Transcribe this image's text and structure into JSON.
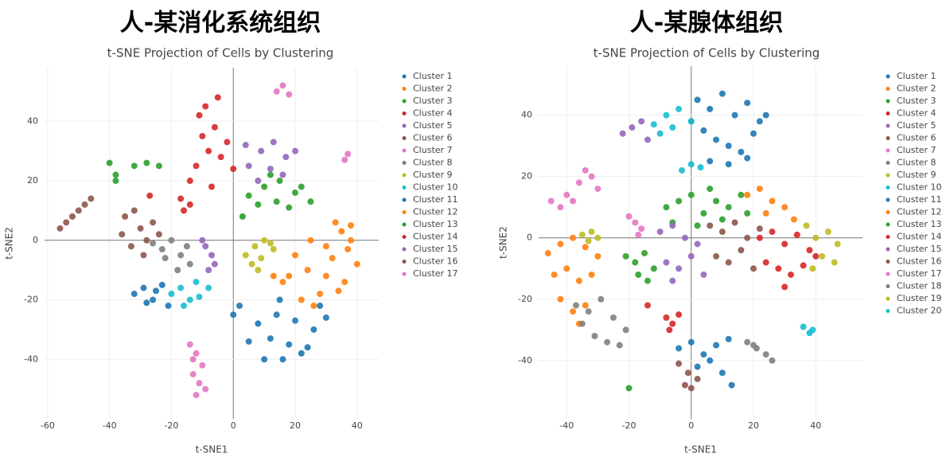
{
  "chart_data": [
    {
      "type": "scatter",
      "title": "人-某消化系统组织",
      "subtitle": "t-SNE Projection of Cells by Clustering",
      "xlabel": "t-SNE1",
      "ylabel": "t-SNE2",
      "xlim": [
        -61,
        47
      ],
      "ylim": [
        -60,
        58
      ],
      "xticks": [
        -60,
        -40,
        -20,
        0,
        20,
        40
      ],
      "yticks": [
        -40,
        -20,
        0,
        20,
        40
      ],
      "grid": true,
      "series": [
        {
          "name": "Cluster 1",
          "color": "#1f77b4",
          "x": [
            2,
            8,
            14,
            20,
            26,
            30,
            5,
            12,
            18,
            24,
            10,
            16,
            22,
            0,
            28,
            15
          ],
          "y": [
            -22,
            -28,
            -25,
            -27,
            -30,
            -26,
            -34,
            -33,
            -35,
            -36,
            -40,
            -40,
            -38,
            -25,
            -22,
            -20
          ]
        },
        {
          "name": "Cluster 2",
          "color": "#ff7f0e",
          "x": [
            20,
            25,
            30,
            35,
            38,
            40,
            18,
            24,
            30,
            36,
            22,
            28,
            34,
            26,
            32,
            37,
            38,
            33
          ],
          "y": [
            -5,
            0,
            -2,
            3,
            0,
            -8,
            -12,
            -10,
            -12,
            -14,
            -20,
            -18,
            -17,
            -22,
            -6,
            -3,
            5,
            6
          ]
        },
        {
          "name": "Cluster 3",
          "color": "#2ca02c",
          "x": [
            5,
            10,
            15,
            20,
            25,
            8,
            14,
            18,
            22,
            12,
            3
          ],
          "y": [
            15,
            18,
            20,
            16,
            13,
            12,
            13,
            11,
            18,
            22,
            8
          ]
        },
        {
          "name": "Cluster 4",
          "color": "#d62728",
          "x": [
            -12,
            -8,
            -4,
            0,
            -10,
            -6,
            -2,
            -14,
            -9,
            -5,
            -7,
            -11
          ],
          "y": [
            25,
            30,
            28,
            24,
            35,
            38,
            33,
            20,
            45,
            48,
            18,
            42
          ]
        },
        {
          "name": "Cluster 5",
          "color": "#9467bd",
          "x": [
            5,
            9,
            13,
            17,
            20,
            8,
            12,
            16,
            4
          ],
          "y": [
            25,
            30,
            33,
            28,
            30,
            20,
            24,
            22,
            32
          ]
        },
        {
          "name": "Cluster 6",
          "color": "#8c564b",
          "x": [
            -35,
            -32,
            -30,
            -28,
            -26,
            -33,
            -29,
            -24,
            -36
          ],
          "y": [
            8,
            10,
            4,
            0,
            6,
            -2,
            -5,
            2,
            2
          ]
        },
        {
          "name": "Cluster 7",
          "color": "#e377c2",
          "x": [
            -14,
            -12,
            -10,
            -13,
            -11,
            -9,
            -12,
            -13
          ],
          "y": [
            -35,
            -38,
            -42,
            -45,
            -48,
            -50,
            -52,
            -40
          ]
        },
        {
          "name": "Cluster 8",
          "color": "#7f7f7f",
          "x": [
            -26,
            -23,
            -20,
            -17,
            -14,
            -22,
            -18,
            -15
          ],
          "y": [
            -1,
            -3,
            0,
            -5,
            -8,
            -6,
            -10,
            -2
          ]
        },
        {
          "name": "Cluster 9",
          "color": "#bcbd22",
          "x": [
            4,
            7,
            10,
            13,
            6,
            9,
            12,
            8
          ],
          "y": [
            -5,
            -2,
            0,
            -3,
            -8,
            -6,
            -1,
            -10
          ]
        },
        {
          "name": "Cluster 10",
          "color": "#17becf",
          "x": [
            -20,
            -17,
            -14,
            -11,
            -8,
            -16,
            -12
          ],
          "y": [
            -18,
            -16,
            -20,
            -19,
            -16,
            -22,
            -14
          ]
        },
        {
          "name": "Cluster 11",
          "color": "#1f77b4",
          "x": [
            -32,
            -29,
            -26,
            -23,
            -21,
            -28,
            -25
          ],
          "y": [
            -18,
            -16,
            -20,
            -15,
            -22,
            -21,
            -17
          ]
        },
        {
          "name": "Cluster 12",
          "color": "#ff7f0e",
          "x": [
            13,
            16
          ],
          "y": [
            -12,
            -14
          ]
        },
        {
          "name": "Cluster 13",
          "color": "#2ca02c",
          "x": [
            -40,
            -38,
            -32,
            -28,
            -24,
            -38
          ],
          "y": [
            26,
            22,
            25,
            26,
            25,
            20
          ]
        },
        {
          "name": "Cluster 14",
          "color": "#d62728",
          "x": [
            -17,
            -14,
            -16,
            -27
          ],
          "y": [
            14,
            12,
            10,
            15
          ]
        },
        {
          "name": "Cluster 15",
          "color": "#9467bd",
          "x": [
            -9,
            -7,
            -6,
            -8,
            -10
          ],
          "y": [
            -2,
            -5,
            -8,
            -10,
            0
          ]
        },
        {
          "name": "Cluster 16",
          "color": "#8c564b",
          "x": [
            -56,
            -54,
            -52,
            -50,
            -48,
            -46
          ],
          "y": [
            4,
            6,
            8,
            10,
            12,
            14
          ]
        },
        {
          "name": "Cluster 17",
          "color": "#e377c2",
          "x": [
            14,
            16,
            18,
            36,
            37
          ],
          "y": [
            50,
            52,
            49,
            27,
            29
          ]
        }
      ]
    },
    {
      "type": "scatter",
      "title": "人-某腺体组织",
      "subtitle": "t-SNE Projection of Cells by Clustering",
      "xlabel": "t-SNE1",
      "ylabel": "t-SNE2",
      "xlim": [
        -49,
        55
      ],
      "ylim": [
        -59,
        56
      ],
      "xticks": [
        -40,
        -20,
        0,
        20,
        40
      ],
      "yticks": [
        -40,
        -20,
        0,
        20,
        40
      ],
      "grid": true,
      "series": [
        {
          "name": "Cluster 1",
          "color": "#1f77b4",
          "x": [
            2,
            6,
            10,
            14,
            18,
            22,
            4,
            8,
            12,
            16,
            20,
            24,
            6,
            12,
            18,
            0
          ],
          "y": [
            45,
            42,
            47,
            40,
            44,
            38,
            35,
            32,
            30,
            28,
            34,
            40,
            25,
            24,
            26,
            38
          ]
        },
        {
          "name": "Cluster 2",
          "color": "#ff7f0e",
          "x": [
            -46,
            -42,
            -38,
            -34,
            -30,
            -44,
            -40,
            -36,
            -32,
            -42,
            -38,
            -34,
            -36
          ],
          "y": [
            -5,
            -2,
            0,
            -3,
            -6,
            -12,
            -10,
            -14,
            -12,
            -20,
            -24,
            -22,
            -28
          ]
        },
        {
          "name": "Cluster 3",
          "color": "#2ca02c",
          "x": [
            -8,
            -4,
            0,
            4,
            8,
            12,
            16,
            -6,
            2,
            10,
            18,
            6,
            -20
          ],
          "y": [
            10,
            12,
            14,
            8,
            12,
            10,
            14,
            5,
            4,
            6,
            8,
            16,
            -49
          ]
        },
        {
          "name": "Cluster 4",
          "color": "#d62728",
          "x": [
            22,
            26,
            30,
            34,
            38,
            24,
            28,
            32,
            36,
            40,
            30
          ],
          "y": [
            0,
            2,
            -2,
            1,
            -4,
            -8,
            -10,
            -12,
            -9,
            -6,
            -16
          ]
        },
        {
          "name": "Cluster 5",
          "color": "#9467bd",
          "x": [
            -10,
            -6,
            -2,
            2,
            -8,
            -4,
            0,
            4,
            -6
          ],
          "y": [
            2,
            4,
            0,
            -2,
            -8,
            -10,
            -6,
            -12,
            -14
          ]
        },
        {
          "name": "Cluster 6",
          "color": "#8c564b",
          "x": [
            6,
            10,
            14,
            18,
            22,
            8,
            12,
            16,
            20
          ],
          "y": [
            4,
            2,
            5,
            0,
            3,
            -6,
            -8,
            -4,
            -10
          ]
        },
        {
          "name": "Cluster 7",
          "color": "#e377c2",
          "x": [
            -45,
            -40,
            -36,
            -32,
            -30,
            -42,
            -38,
            -34
          ],
          "y": [
            12,
            14,
            18,
            20,
            16,
            10,
            12,
            22
          ]
        },
        {
          "name": "Cluster 8",
          "color": "#7f7f7f",
          "x": [
            -37,
            -33,
            -29,
            -25,
            -21,
            -35,
            -31,
            -27,
            -23
          ],
          "y": [
            -22,
            -24,
            -20,
            -26,
            -30,
            -28,
            -32,
            -34,
            -35
          ]
        },
        {
          "name": "Cluster 9",
          "color": "#bcbd22",
          "x": [
            37,
            40,
            44,
            47,
            42,
            46,
            39
          ],
          "y": [
            4,
            0,
            2,
            -2,
            -6,
            -8,
            -10
          ]
        },
        {
          "name": "Cluster 10",
          "color": "#17becf",
          "x": [
            -12,
            -8,
            -4,
            0,
            -10,
            -6
          ],
          "y": [
            37,
            40,
            42,
            38,
            34,
            36
          ]
        },
        {
          "name": "Cluster 11",
          "color": "#1f77b4",
          "x": [
            -4,
            0,
            4,
            8,
            12,
            2,
            6,
            10,
            13
          ],
          "y": [
            -36,
            -34,
            -38,
            -35,
            -33,
            -42,
            -40,
            -44,
            -48
          ]
        },
        {
          "name": "Cluster 12",
          "color": "#ff7f0e",
          "x": [
            18,
            22,
            26,
            30,
            33,
            24
          ],
          "y": [
            14,
            16,
            12,
            10,
            6,
            8
          ]
        },
        {
          "name": "Cluster 13",
          "color": "#2ca02c",
          "x": [
            -21,
            -18,
            -15,
            -12,
            -17,
            -14
          ],
          "y": [
            -6,
            -8,
            -5,
            -10,
            -12,
            -14
          ]
        },
        {
          "name": "Cluster 14",
          "color": "#d62728",
          "x": [
            -8,
            -6,
            -4,
            -7,
            -14
          ],
          "y": [
            -26,
            -28,
            -25,
            -30,
            -22
          ]
        },
        {
          "name": "Cluster 15",
          "color": "#9467bd",
          "x": [
            -22,
            -19,
            -16,
            -14
          ],
          "y": [
            34,
            36,
            38,
            32
          ]
        },
        {
          "name": "Cluster 16",
          "color": "#8c564b",
          "x": [
            -4,
            -1,
            2,
            0,
            -2
          ],
          "y": [
            -41,
            -44,
            -46,
            -49,
            -48
          ]
        },
        {
          "name": "Cluster 17",
          "color": "#e377c2",
          "x": [
            -20,
            -18,
            -16,
            -17
          ],
          "y": [
            7,
            5,
            3,
            1
          ]
        },
        {
          "name": "Cluster 18",
          "color": "#7f7f7f",
          "x": [
            18,
            21,
            24,
            26,
            20
          ],
          "y": [
            -34,
            -36,
            -38,
            -40,
            -35
          ]
        },
        {
          "name": "Cluster 19",
          "color": "#bcbd22",
          "x": [
            -35,
            -32,
            -30,
            -33
          ],
          "y": [
            1,
            2,
            0,
            -1
          ]
        },
        {
          "name": "Cluster 20",
          "color": "#17becf",
          "x": [
            -3,
            0,
            3,
            36,
            38,
            39
          ],
          "y": [
            22,
            24,
            23,
            -29,
            -31,
            -30
          ]
        }
      ]
    }
  ]
}
